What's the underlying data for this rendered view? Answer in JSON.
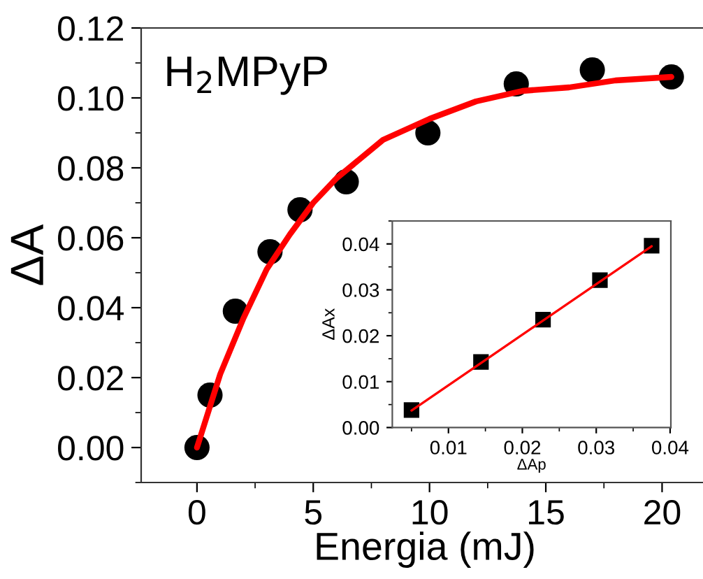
{
  "chart_data": [
    {
      "type": "scatter",
      "xlabel": "Energia (mJ)",
      "ylabel": "ΔA",
      "annotations": [
        "H$_{2}$MPyP"
      ],
      "xlim": [
        -2.4,
        22
      ],
      "xticks": [
        0,
        5,
        10,
        15,
        20
      ],
      "ylim": [
        -0.01,
        0.12
      ],
      "yticks": [
        {
          "value": 0,
          "label": "0.00"
        },
        {
          "value": 0.02,
          "label": "0.02"
        },
        {
          "value": 0.04,
          "label": "0.04"
        },
        {
          "value": 0.06,
          "label": "0.06"
        },
        {
          "value": 0.08,
          "label": "0.08"
        },
        {
          "value": 0.1,
          "label": "0.10"
        },
        {
          "value": 0.12,
          "label": "0.12"
        }
      ],
      "grid": false,
      "legend": false,
      "series": [
        {
          "color": "#000000",
          "marker": "circle",
          "x": [
            0,
            0.56,
            1.65,
            3.14,
            4.43,
            6.42,
            9.93,
            13.73,
            17.0,
            20.4
          ],
          "values": [
            0,
            0.015,
            0.039,
            0.056,
            0.068,
            0.076,
            0.09,
            0.104,
            0.108,
            0.106
          ]
        },
        {
          "type": "line",
          "color": "#ff0000",
          "marker": "none",
          "line_style": "solid",
          "x": [
            0,
            1,
            2,
            3,
            4,
            5,
            6,
            8,
            10,
            12,
            14,
            16,
            18,
            20.4
          ],
          "values": [
            0,
            0.021,
            0.037,
            0.051,
            0.061,
            0.07,
            0.077,
            0.088,
            0.094,
            0.099,
            0.102,
            0.103,
            0.105,
            0.106
          ]
        }
      ]
    },
    {
      "type": "scatter",
      "xlabel": "ΔAp",
      "ylabel": "ΔAx",
      "xlim": [
        0.0024,
        0.0401
      ],
      "xticks": [
        0.01,
        0.02,
        0.03,
        0.04
      ],
      "ylim": [
        0,
        0.045
      ],
      "yticks": [
        {
          "value": 0,
          "label": "0.00"
        },
        {
          "value": 0.01,
          "label": "0.01"
        },
        {
          "value": 0.02,
          "label": "0.02"
        },
        {
          "value": 0.03,
          "label": "0.03"
        },
        {
          "value": 0.04,
          "label": "0.04"
        }
      ],
      "grid": false,
      "legend": false,
      "series": [
        {
          "color": "#000000",
          "marker": "square",
          "x": [
            0.005,
            0.0144,
            0.0228,
            0.0305,
            0.0375
          ],
          "values": [
            0.0038,
            0.0143,
            0.0235,
            0.0321,
            0.0396
          ]
        },
        {
          "type": "line",
          "color": "#ff0000",
          "marker": "none",
          "line_style": "solid",
          "x": [
            0.005,
            0.0375
          ],
          "values": [
            0.0037,
            0.0395
          ]
        }
      ]
    }
  ]
}
